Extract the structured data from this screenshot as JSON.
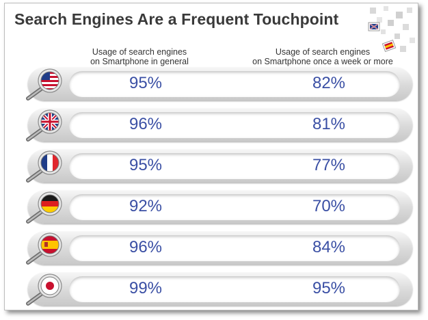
{
  "chart_data": {
    "type": "table",
    "title": "Search Engines Are a Frequent Touchpoint",
    "columns": [
      "Usage of search engines on Smartphone in general",
      "Usage of search engines on Smartphone once a week or more"
    ],
    "rows": [
      {
        "country_icon": "usa-flag-icon",
        "general": "95%",
        "weekly": "82%"
      },
      {
        "country_icon": "uk-flag-icon",
        "general": "96%",
        "weekly": "81%"
      },
      {
        "country_icon": "france-flag-icon",
        "general": "95%",
        "weekly": "77%"
      },
      {
        "country_icon": "germany-flag-icon",
        "general": "92%",
        "weekly": "70%"
      },
      {
        "country_icon": "spain-flag-icon",
        "general": "96%",
        "weekly": "84%"
      },
      {
        "country_icon": "japan-flag-icon",
        "general": "99%",
        "weekly": "95%"
      }
    ]
  },
  "header": {
    "col1_line1": "Usage of search engines",
    "col1_line2": "on Smartphone in general",
    "col2_line1": "Usage of search engines",
    "col2_line2": "on Smartphone once a week or more"
  },
  "colors": {
    "title": "#3a3a3a",
    "value": "#3a4fa4"
  }
}
